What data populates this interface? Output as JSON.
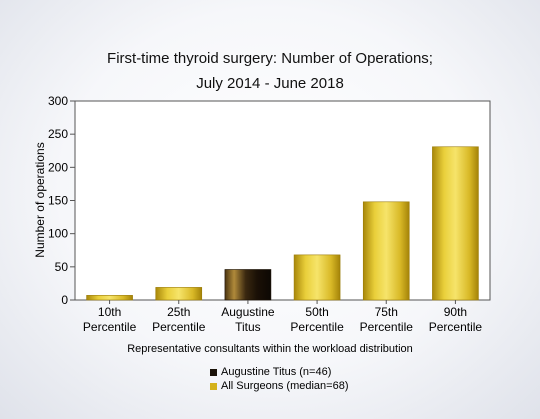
{
  "chart_data": {
    "type": "bar",
    "title_line1": "First-time thyroid surgery: Number of Operations;",
    "title_line2": "July 2014 - June 2018",
    "xlabel": "Representative consultants within the workload distribution",
    "ylabel": "Number of operations",
    "ylim": [
      0,
      300
    ],
    "yticks": [
      0,
      50,
      100,
      150,
      200,
      250,
      300
    ],
    "categories": [
      [
        "10th",
        "Percentile"
      ],
      [
        "25th",
        "Percentile"
      ],
      [
        "Augustine",
        "Titus"
      ],
      [
        "50th",
        "Percentile"
      ],
      [
        "75th",
        "Percentile"
      ],
      [
        "90th",
        "Percentile"
      ]
    ],
    "values": [
      7,
      19,
      46,
      68,
      148,
      231
    ],
    "highlight_index": 2,
    "grid": false,
    "legend_position": "bottom",
    "legend": [
      {
        "label": "Augustine Titus (n=46)",
        "color": "#1a1208"
      },
      {
        "label": "All Surgeons (median=68)",
        "color": "#d4b21a"
      }
    ],
    "colors": {
      "surgeon_bar": "#d4b21a",
      "highlight_bar": "#2a1c0c"
    }
  }
}
